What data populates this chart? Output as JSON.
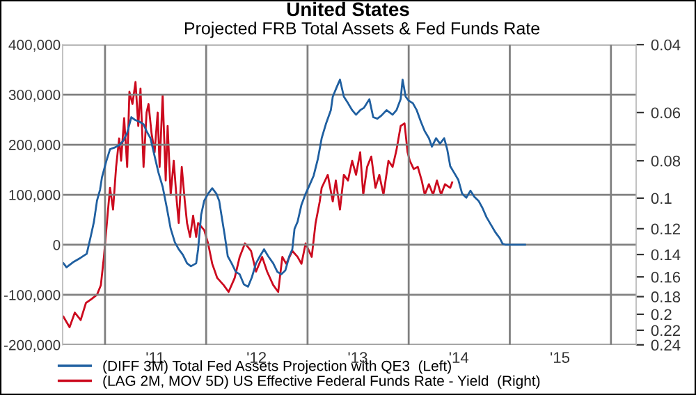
{
  "chart_data": {
    "type": "line",
    "title": "United States",
    "subtitle": "Projected FRB Total Assets & Fed Funds Rate",
    "xlim": [
      "2010-08-01",
      "2016-04-01"
    ],
    "xticks": [
      {
        "value": "2011-01-01",
        "label": null
      },
      {
        "value": "2011-07-01",
        "label": "'11"
      },
      {
        "value": "2012-01-01",
        "label": null
      },
      {
        "value": "2012-07-01",
        "label": "'12"
      },
      {
        "value": "2013-01-01",
        "label": null
      },
      {
        "value": "2013-07-01",
        "label": "'13"
      },
      {
        "value": "2014-01-01",
        "label": null
      },
      {
        "value": "2014-07-01",
        "label": "'14"
      },
      {
        "value": "2015-01-01",
        "label": null
      },
      {
        "value": "2015-07-01",
        "label": "'15"
      },
      {
        "value": "2016-01-01",
        "label": null
      }
    ],
    "ylim": [
      -200000,
      400000
    ],
    "yticks": [
      {
        "value": -200000,
        "label": "-200,000"
      },
      {
        "value": -100000,
        "label": "-100,000"
      },
      0,
      {
        "value": 100000,
        "label": "100,000"
      },
      {
        "value": 200000,
        "label": "200,000"
      },
      {
        "value": 300000,
        "label": "300,000"
      },
      {
        "value": 400000,
        "label": "400,000"
      }
    ],
    "y2lim": [
      0.24,
      0.04
    ],
    "y2ticks": [
      0.04,
      0.06,
      0.08,
      0.1,
      0.12,
      0.14,
      0.16,
      0.18,
      0.2,
      0.22,
      0.24
    ],
    "log": "y2",
    "grid": true,
    "legend": "bottom",
    "series": [
      {
        "name": "(DIFF 3M) Total Fed Assets Projection with QE3  (Left)",
        "color": "#1f5fa0",
        "x": [
          "2010-08-04",
          "2010-08-15",
          "2010-09-10",
          "2010-10-05",
          "2010-10-27",
          "2010-11-11",
          "2010-11-22",
          "2010-12-03",
          "2010-12-14",
          "2010-12-21",
          "2011-01-05",
          "2011-01-19",
          "2011-02-03",
          "2011-02-21",
          "2011-03-08",
          "2011-03-22",
          "2011-04-06",
          "2011-04-21",
          "2011-05-05",
          "2011-05-20",
          "2011-05-31",
          "2011-06-14",
          "2011-06-29",
          "2011-07-13",
          "2011-07-28",
          "2011-08-12",
          "2011-08-26",
          "2011-09-10",
          "2011-09-24",
          "2011-10-09",
          "2011-10-24",
          "2011-11-07",
          "2011-11-26",
          "2011-12-03",
          "2011-12-14",
          "2011-12-25",
          "2012-01-08",
          "2012-01-23",
          "2012-02-07",
          "2012-02-17",
          "2012-02-25",
          "2012-03-08",
          "2012-03-19",
          "2012-04-02",
          "2012-04-17",
          "2012-05-01",
          "2012-05-16",
          "2012-05-31",
          "2012-06-14",
          "2012-06-29",
          "2012-07-13",
          "2012-07-28",
          "2012-08-12",
          "2012-08-30",
          "2012-09-14",
          "2012-09-28",
          "2012-10-13",
          "2012-10-27",
          "2012-11-07",
          "2012-11-15",
          "2012-11-26",
          "2012-12-10",
          "2012-12-25",
          "2013-01-08",
          "2013-01-23",
          "2013-02-07",
          "2013-02-21",
          "2013-03-08",
          "2013-03-26",
          "2013-04-02",
          "2013-04-17",
          "2013-04-28",
          "2013-05-12",
          "2013-05-27",
          "2013-06-11",
          "2013-06-25",
          "2013-07-10",
          "2013-07-24",
          "2013-08-12",
          "2013-08-26",
          "2013-09-10",
          "2013-09-24",
          "2013-10-13",
          "2013-11-04",
          "2013-11-18",
          "2013-12-03",
          "2013-12-10",
          "2013-12-21",
          "2014-01-01",
          "2014-01-16",
          "2014-01-30",
          "2014-02-14",
          "2014-02-28",
          "2014-03-15",
          "2014-03-26",
          "2014-04-10",
          "2014-04-24",
          "2014-05-09",
          "2014-05-20",
          "2014-05-31",
          "2014-06-14",
          "2014-06-29",
          "2014-07-13",
          "2014-07-28",
          "2014-08-12",
          "2014-08-26",
          "2014-09-10",
          "2014-09-24",
          "2014-10-09",
          "2014-10-27",
          "2014-11-11",
          "2014-11-26",
          "2014-12-06",
          "2014-12-17",
          "2015-02-25"
        ],
        "values": [
          -37000,
          -45000,
          -34000,
          -26000,
          -18000,
          18000,
          46000,
          88000,
          110000,
          135000,
          166000,
          191000,
          194000,
          199000,
          208000,
          224000,
          255000,
          249000,
          246000,
          241000,
          227000,
          213000,
          177000,
          144000,
          116000,
          74000,
          32000,
          5000,
          -9000,
          -20000,
          -37000,
          -43000,
          -37000,
          -9000,
          60000,
          88000,
          102000,
          113000,
          102000,
          88000,
          60000,
          19000,
          -23000,
          -37000,
          -54000,
          -59000,
          -79000,
          -84000,
          -65000,
          -37000,
          -23000,
          -9000,
          -23000,
          -37000,
          -54000,
          -59000,
          -51000,
          -23000,
          -9000,
          32000,
          46000,
          80000,
          102000,
          119000,
          138000,
          171000,
          213000,
          241000,
          269000,
          296000,
          316000,
          330000,
          296000,
          283000,
          269000,
          260000,
          269000,
          274000,
          291000,
          255000,
          252000,
          258000,
          269000,
          260000,
          269000,
          291000,
          330000,
          296000,
          288000,
          283000,
          269000,
          246000,
          227000,
          213000,
          196000,
          213000,
          202000,
          213000,
          191000,
          157000,
          144000,
          130000,
          102000,
          94000,
          108000,
          96000,
          88000,
          74000,
          55000,
          38000,
          24000,
          13000,
          2000,
          0,
          0
        ]
      },
      {
        "name": "(LAG 2M, MOV 5D) US Effective Federal Funds Rate - Yield  (Right)",
        "color": "#cc0a1e",
        "axis": "y2",
        "x": [
          "2010-08-04",
          "2010-08-26",
          "2010-09-14",
          "2010-10-05",
          "2010-10-24",
          "2010-11-11",
          "2010-12-03",
          "2010-12-17",
          "2010-12-28",
          "2011-01-12",
          "2011-01-19",
          "2011-01-30",
          "2011-02-10",
          "2011-02-21",
          "2011-02-28",
          "2011-03-11",
          "2011-03-22",
          "2011-03-30",
          "2011-04-10",
          "2011-04-21",
          "2011-05-01",
          "2011-05-09",
          "2011-05-20",
          "2011-05-31",
          "2011-06-07",
          "2011-06-18",
          "2011-06-29",
          "2011-07-10",
          "2011-07-17",
          "2011-07-28",
          "2011-08-08",
          "2011-08-15",
          "2011-08-26",
          "2011-09-06",
          "2011-09-17",
          "2011-09-24",
          "2011-10-05",
          "2011-10-16",
          "2011-10-24",
          "2011-11-04",
          "2011-11-15",
          "2011-11-26",
          "2011-12-03",
          "2011-12-25",
          "2012-01-08",
          "2012-01-23",
          "2012-02-10",
          "2012-03-04",
          "2012-03-22",
          "2012-04-13",
          "2012-05-01",
          "2012-05-20",
          "2012-06-11",
          "2012-06-29",
          "2012-07-21",
          "2012-08-08",
          "2012-08-30",
          "2012-09-17",
          "2012-10-02",
          "2012-10-16",
          "2012-11-07",
          "2012-11-26",
          "2012-12-10",
          "2012-12-25",
          "2013-01-16",
          "2013-01-30",
          "2013-02-14",
          "2013-02-21",
          "2013-03-15",
          "2013-04-02",
          "2013-04-13",
          "2013-04-28",
          "2013-05-12",
          "2013-05-27",
          "2013-06-11",
          "2013-06-25",
          "2013-07-10",
          "2013-07-21",
          "2013-08-04",
          "2013-08-19",
          "2013-09-03",
          "2013-09-17",
          "2013-10-02",
          "2013-10-20",
          "2013-11-04",
          "2013-11-18",
          "2013-12-03",
          "2013-12-17",
          "2013-12-28",
          "2014-01-05",
          "2014-01-19",
          "2014-02-03",
          "2014-02-17",
          "2014-02-28",
          "2014-03-15",
          "2014-03-30",
          "2014-04-13",
          "2014-04-28",
          "2014-05-12",
          "2014-05-31",
          "2014-06-07"
        ],
        "values": [
          0.203,
          0.216,
          0.198,
          0.207,
          0.187,
          0.183,
          0.178,
          0.168,
          0.142,
          0.107,
          0.094,
          0.107,
          0.083,
          0.07,
          0.08,
          0.062,
          0.083,
          0.053,
          0.057,
          0.05,
          0.065,
          0.052,
          0.083,
          0.06,
          0.057,
          0.068,
          0.076,
          0.06,
          0.083,
          0.054,
          0.09,
          0.065,
          0.098,
          0.08,
          0.102,
          0.116,
          0.083,
          0.102,
          0.116,
          0.126,
          0.111,
          0.126,
          0.116,
          0.121,
          0.131,
          0.148,
          0.161,
          0.168,
          0.175,
          0.161,
          0.142,
          0.131,
          0.137,
          0.155,
          0.142,
          0.155,
          0.168,
          0.175,
          0.142,
          0.148,
          0.137,
          0.142,
          0.148,
          0.131,
          0.142,
          0.116,
          0.102,
          0.094,
          0.087,
          0.102,
          0.09,
          0.107,
          0.087,
          0.09,
          0.08,
          0.087,
          0.076,
          0.098,
          0.083,
          0.078,
          0.094,
          0.087,
          0.098,
          0.08,
          0.083,
          0.075,
          0.065,
          0.064,
          0.076,
          0.08,
          0.084,
          0.083,
          0.09,
          0.098,
          0.092,
          0.098,
          0.09,
          0.098,
          0.092,
          0.094,
          0.091
        ]
      }
    ]
  }
}
